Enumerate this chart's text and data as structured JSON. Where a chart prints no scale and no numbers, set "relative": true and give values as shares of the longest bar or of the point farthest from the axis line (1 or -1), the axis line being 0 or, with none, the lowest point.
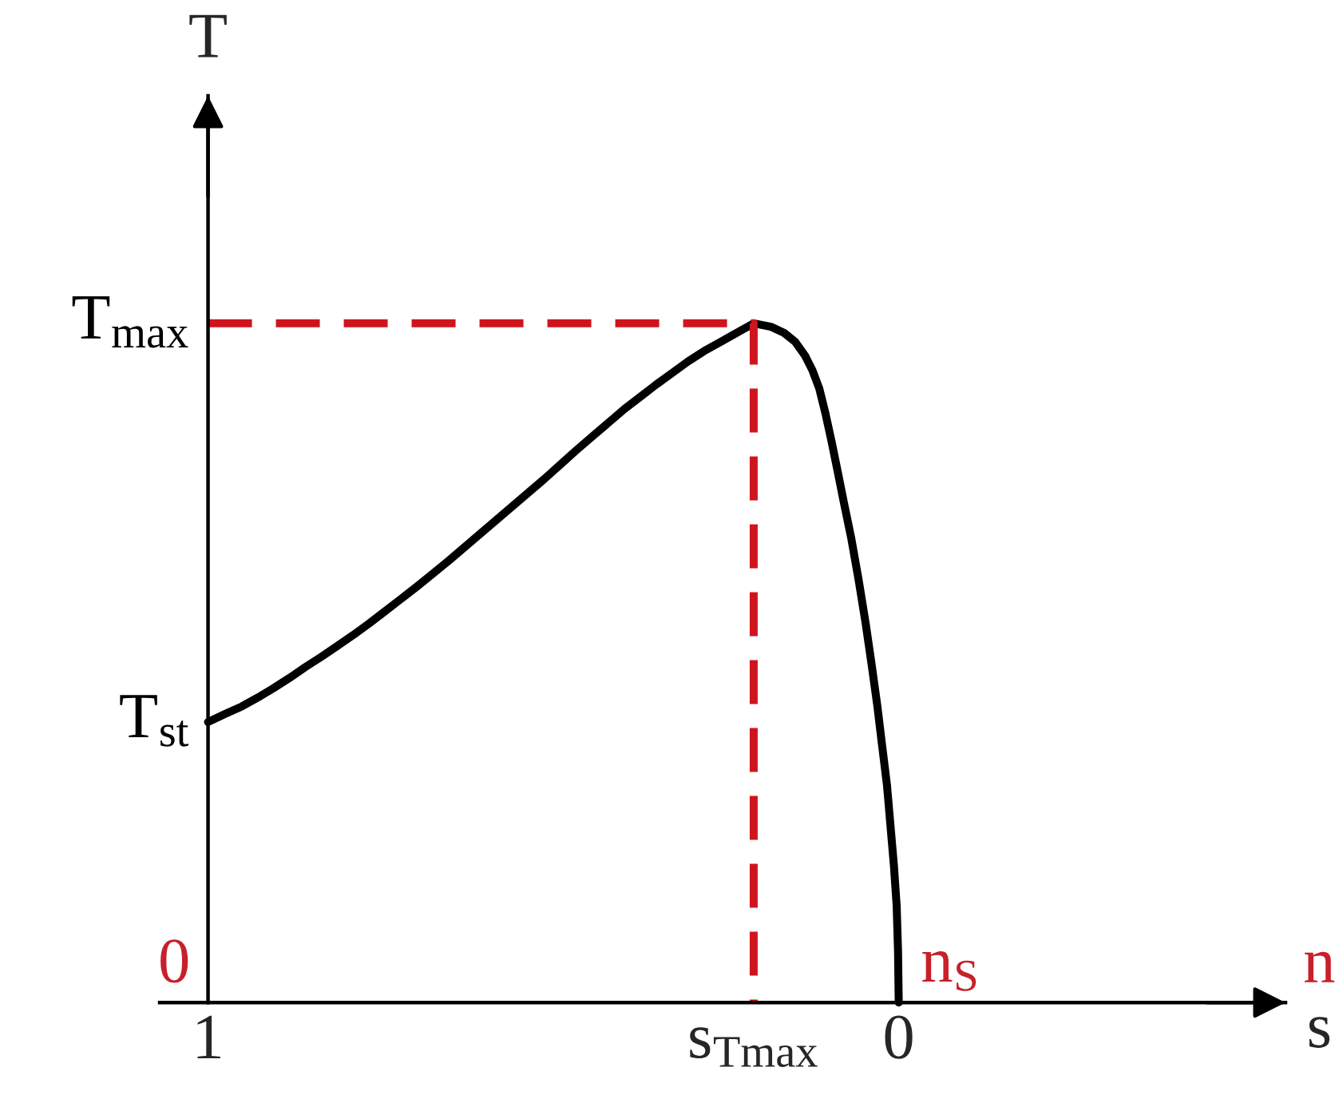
{
  "chart_data": {
    "type": "line",
    "relative": true,
    "xlabel": "s",
    "ylabel": "T",
    "xlim": [
      1.07,
      -0.56
    ],
    "xticks": [
      1,
      {
        "value": 0.21,
        "label": "s$_{Tmax}$"
      },
      0
    ],
    "series": [
      {
        "color": "#000000",
        "x": [
          1,
          0.975,
          0.951,
          0.928,
          0.905,
          0.882,
          0.859,
          0.836,
          0.813,
          0.79,
          0.767,
          0.744,
          0.721,
          0.697,
          0.674,
          0.651,
          0.628,
          0.605,
          0.582,
          0.559,
          0.536,
          0.513,
          0.49,
          0.467,
          0.443,
          0.42,
          0.397,
          0.374,
          0.351,
          0.328,
          0.305,
          0.282,
          0.259,
          0.24,
          0.224,
          0.21,
          0.185,
          0.166,
          0.15,
          0.136,
          0.125,
          0.115,
          0.106,
          0.097,
          0.088,
          0.079,
          0.069,
          0.058,
          0.048,
          0.039,
          0.031,
          0.024,
          0.017,
          0.012,
          0.007,
          0.003,
          0.001,
          0
        ],
        "values": [
          0.413,
          0.425,
          0.436,
          0.449,
          0.463,
          0.478,
          0.494,
          0.509,
          0.525,
          0.541,
          0.558,
          0.576,
          0.594,
          0.613,
          0.632,
          0.651,
          0.671,
          0.691,
          0.711,
          0.731,
          0.751,
          0.771,
          0.792,
          0.813,
          0.834,
          0.854,
          0.874,
          0.892,
          0.91,
          0.927,
          0.944,
          0.959,
          0.972,
          0.983,
          0.992,
          1,
          0.995,
          0.986,
          0.973,
          0.953,
          0.931,
          0.904,
          0.867,
          0.825,
          0.78,
          0.734,
          0.685,
          0.622,
          0.559,
          0.496,
          0.437,
          0.378,
          0.32,
          0.261,
          0.202,
          0.143,
          0.076,
          0
        ]
      },
      {
        "color": "#d0141e",
        "line_style": "dashed",
        "x": [
          1,
          0.21,
          0.21
        ],
        "values": [
          1,
          1,
          0
        ]
      }
    ],
    "annotations": [
      "T$_{max}$",
      "T$_{st}$",
      "0",
      {
        "text": "n$_{S}$",
        "x": 0
      },
      "n"
    ]
  }
}
